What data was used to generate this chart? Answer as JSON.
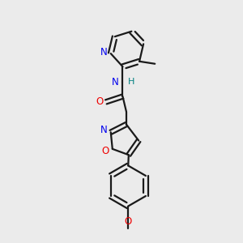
{
  "bg_color": "#ebebeb",
  "bond_color": "#1a1a1a",
  "N_color": "#0000ee",
  "O_color": "#ee0000",
  "NH_color": "#008080",
  "figsize": [
    3.0,
    3.0
  ],
  "dpi": 100,
  "xlim": [
    0,
    10
  ],
  "ylim": [
    0,
    10
  ]
}
